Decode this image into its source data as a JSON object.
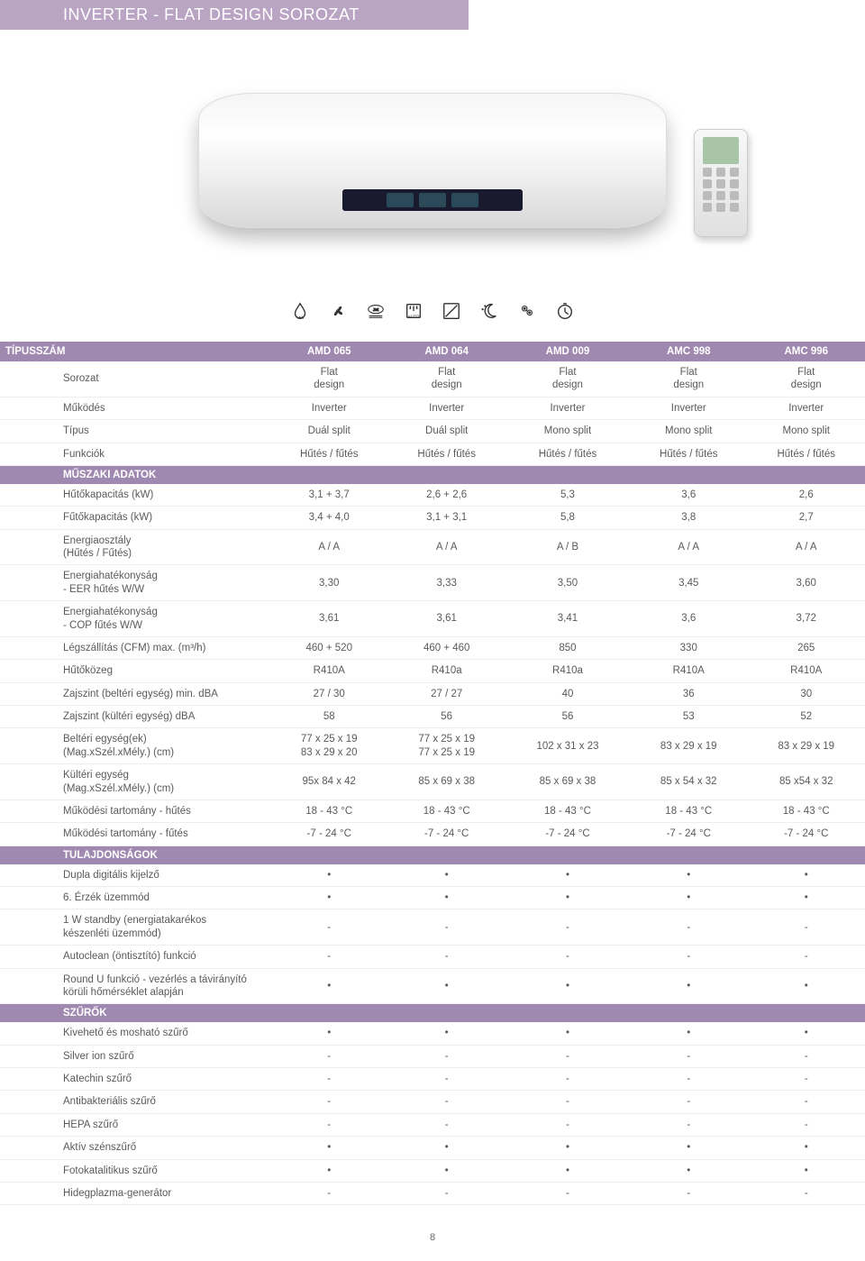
{
  "title": "INVERTER - FLAT DESIGN SOROZAT",
  "colors": {
    "header_bg": "#a089b0",
    "title_bg": "#b9a4c4"
  },
  "columns": [
    "AMD 065",
    "AMD 064",
    "AMD 009",
    "AMC 998",
    "AMC 996"
  ],
  "col_header_label": "TÍPUSSZÁM",
  "sections": {
    "tech": "MŰSZAKI ADATOK",
    "features": "TULAJDONSÁGOK",
    "filters": "SZŰRŐK"
  },
  "rows_top": [
    {
      "label": "Sorozat",
      "vals": [
        "Flat\ndesign",
        "Flat\ndesign",
        "Flat\ndesign",
        "Flat\ndesign",
        "Flat\ndesign"
      ]
    },
    {
      "label": "Működés",
      "vals": [
        "Inverter",
        "Inverter",
        "Inverter",
        "Inverter",
        "Inverter"
      ]
    },
    {
      "label": "Típus",
      "vals": [
        "Duál split",
        "Duál split",
        "Mono split",
        "Mono split",
        "Mono split"
      ]
    },
    {
      "label": "Funkciók",
      "vals": [
        "Hűtés / fűtés",
        "Hűtés / fűtés",
        "Hűtés / fűtés",
        "Hűtés / fűtés",
        "Hűtés / fűtés"
      ]
    }
  ],
  "rows_tech": [
    {
      "label": "Hűtőkapacitás (kW)",
      "vals": [
        "3,1 + 3,7",
        "2,6 + 2,6",
        "5,3",
        "3,6",
        "2,6"
      ]
    },
    {
      "label": "Fűtőkapacitás (kW)",
      "vals": [
        "3,4 + 4,0",
        "3,1 + 3,1",
        "5,8",
        "3,8",
        "2,7"
      ]
    },
    {
      "label": "Energiaosztály\n(Hűtés / Fűtés)",
      "vals": [
        "A / A",
        "A / A",
        "A / B",
        "A / A",
        "A / A"
      ]
    },
    {
      "label": "Energiahatékonyság\n- EER hűtés W/W",
      "vals": [
        "3,30",
        "3,33",
        "3,50",
        "3,45",
        "3,60"
      ]
    },
    {
      "label": "Energiahatékonyság\n- COP fűtés W/W",
      "vals": [
        "3,61",
        "3,61",
        "3,41",
        "3,6",
        "3,72"
      ]
    },
    {
      "label": "Légszállítás (CFM) max. (m³/h)",
      "vals": [
        "460 + 520",
        "460 + 460",
        "850",
        "330",
        "265"
      ]
    },
    {
      "label": "Hűtőközeg",
      "vals": [
        "R410A",
        "R410a",
        "R410a",
        "R410A",
        "R410A"
      ]
    },
    {
      "label": "Zajszint (beltéri egység) min. dBA",
      "vals": [
        "27 / 30",
        "27 / 27",
        "40",
        "36",
        "30"
      ]
    },
    {
      "label": "Zajszint (kültéri egység) dBA",
      "vals": [
        "58",
        "56",
        "56",
        "53",
        "52"
      ]
    },
    {
      "label": "Beltéri egység(ek)\n(Mag.xSzél.xMély.) (cm)",
      "vals": [
        "77 x 25 x 19\n83 x 29 x 20",
        "77 x 25 x 19\n77 x 25 x 19",
        "102 x 31 x 23",
        "83 x 29 x 19",
        "83 x 29 x 19"
      ]
    },
    {
      "label": "Kültéri egység\n(Mag.xSzél.xMély.) (cm)",
      "vals": [
        "95x 84 x 42",
        "85 x 69 x 38",
        "85 x 69 x 38",
        "85 x 54 x 32",
        "85 x54 x 32"
      ]
    },
    {
      "label": "Működési tartomány - hűtés",
      "vals": [
        "18 - 43 °C",
        "18 - 43 °C",
        "18 - 43 °C",
        "18 - 43 °C",
        "18 - 43 °C"
      ]
    },
    {
      "label": "Működési tartomány - fűtés",
      "vals": [
        "-7 - 24 °C",
        "-7 - 24 °C",
        "-7 - 24 °C",
        "-7 - 24 °C",
        "-7 - 24 °C"
      ]
    }
  ],
  "rows_features": [
    {
      "label": "Dupla digitális kijelző",
      "vals": [
        "•",
        "•",
        "•",
        "•",
        "•"
      ]
    },
    {
      "label": "6. Érzék üzemmód",
      "vals": [
        "•",
        "•",
        "•",
        "•",
        "•"
      ]
    },
    {
      "label": "1 W standby (energiatakarékos\nkészenléti üzemmód)",
      "vals": [
        "-",
        "-",
        "-",
        "-",
        "-"
      ]
    },
    {
      "label": "Autoclean (öntisztító) funkció",
      "vals": [
        "-",
        "-",
        "-",
        "-",
        "-"
      ]
    },
    {
      "label": "Round U funkció - vezérlés a távirányító körüli hőmérséklet alapján",
      "vals": [
        "•",
        "•",
        "•",
        "•",
        "•"
      ]
    }
  ],
  "rows_filters": [
    {
      "label": "Kivehető és mosható szűrő",
      "vals": [
        "•",
        "•",
        "•",
        "•",
        "•"
      ]
    },
    {
      "label": "Silver ion szűrő",
      "vals": [
        "-",
        "-",
        "-",
        "-",
        "-"
      ]
    },
    {
      "label": "Katechin szűrő",
      "vals": [
        "-",
        "-",
        "-",
        "-",
        "-"
      ]
    },
    {
      "label": "Antibakteriális szűrő",
      "vals": [
        "-",
        "-",
        "-",
        "-",
        "-"
      ]
    },
    {
      "label": "HEPA szűrő",
      "vals": [
        "-",
        "-",
        "-",
        "-",
        "-"
      ]
    },
    {
      "label": "Aktív szénszűrő",
      "vals": [
        "•",
        "•",
        "•",
        "•",
        "•"
      ]
    },
    {
      "label": "Fotokatalitikus szűrő",
      "vals": [
        "•",
        "•",
        "•",
        "•",
        "•"
      ]
    },
    {
      "label": "Hidegplazma-generátor",
      "vals": [
        "-",
        "-",
        "-",
        "-",
        "-"
      ]
    }
  ],
  "page_number": "8",
  "icon_names": [
    "droplet-icon",
    "fan-icon",
    "jet-icon",
    "auto-icon",
    "swing-icon",
    "moon-icon",
    "ion-icon",
    "timer-icon"
  ]
}
